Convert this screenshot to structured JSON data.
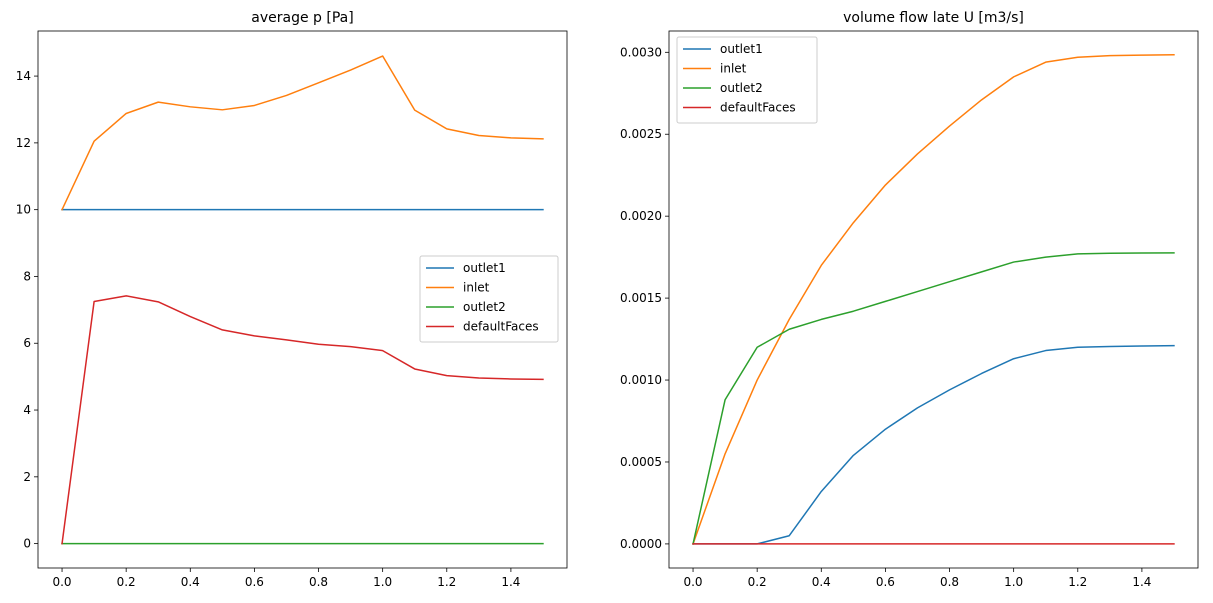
{
  "chart_data": [
    {
      "type": "line",
      "title": "average p [Pa]",
      "xlabel": "",
      "ylabel": "",
      "x": [
        0.0,
        0.1,
        0.2,
        0.3,
        0.4,
        0.5,
        0.6,
        0.7,
        0.8,
        0.9,
        1.0,
        1.1,
        1.2,
        1.3,
        1.4,
        1.5
      ],
      "xlim": [
        -0.075,
        1.575
      ],
      "ylim": [
        -0.73,
        15.35
      ],
      "xticks": [
        0.0,
        0.2,
        0.4,
        0.6,
        0.8,
        1.0,
        1.2,
        1.4
      ],
      "xtick_labels": [
        "0.0",
        "0.2",
        "0.4",
        "0.6",
        "0.8",
        "1.0",
        "1.2",
        "1.4"
      ],
      "yticks": [
        0,
        2,
        4,
        6,
        8,
        10,
        12,
        14
      ],
      "ytick_labels": [
        "0",
        "2",
        "4",
        "6",
        "8",
        "10",
        "12",
        "14"
      ],
      "legend_position": "center-right",
      "grid": false,
      "series": [
        {
          "name": "outlet1",
          "color": "#1f77b4",
          "values": [
            10,
            10,
            10,
            10,
            10,
            10,
            10,
            10,
            10,
            10,
            10,
            10,
            10,
            10,
            10,
            10
          ]
        },
        {
          "name": "inlet",
          "color": "#ff7f0e",
          "values": [
            10.0,
            12.05,
            12.88,
            13.22,
            13.08,
            12.99,
            13.12,
            13.42,
            13.8,
            14.18,
            14.6,
            12.98,
            12.42,
            12.22,
            12.15,
            12.12
          ]
        },
        {
          "name": "outlet2",
          "color": "#2ca02c",
          "values": [
            0,
            0,
            0,
            0,
            0,
            0,
            0,
            0,
            0,
            0,
            0,
            0,
            0,
            0,
            0,
            0
          ]
        },
        {
          "name": "defaultFaces",
          "color": "#d62728",
          "values": [
            0.0,
            7.25,
            7.42,
            7.24,
            6.8,
            6.4,
            6.22,
            6.1,
            5.97,
            5.9,
            5.78,
            5.23,
            5.03,
            4.96,
            4.93,
            4.92
          ]
        }
      ]
    },
    {
      "type": "line",
      "title": "volume flow late U [m3/s]",
      "xlabel": "",
      "ylabel": "",
      "x": [
        0.0,
        0.1,
        0.2,
        0.3,
        0.4,
        0.5,
        0.6,
        0.7,
        0.8,
        0.9,
        1.0,
        1.1,
        1.2,
        1.3,
        1.4,
        1.5
      ],
      "xlim": [
        -0.075,
        1.575
      ],
      "ylim": [
        -0.000147,
        0.00313
      ],
      "xticks": [
        0.0,
        0.2,
        0.4,
        0.6,
        0.8,
        1.0,
        1.2,
        1.4
      ],
      "xtick_labels": [
        "0.0",
        "0.2",
        "0.4",
        "0.6",
        "0.8",
        "1.0",
        "1.2",
        "1.4"
      ],
      "yticks": [
        0.0,
        0.0005,
        0.001,
        0.0015,
        0.002,
        0.0025,
        0.003
      ],
      "ytick_labels": [
        "0.0000",
        "0.0005",
        "0.0010",
        "0.0015",
        "0.0020",
        "0.0025",
        "0.0030"
      ],
      "legend_position": "top-left",
      "grid": false,
      "series": [
        {
          "name": "outlet1",
          "color": "#1f77b4",
          "values": [
            0.0,
            0.0,
            0.0,
            5e-05,
            0.00032,
            0.00054,
            0.0007,
            0.00083,
            0.00094,
            0.00104,
            0.00113,
            0.00118,
            0.0012,
            0.001205,
            0.001208,
            0.00121
          ]
        },
        {
          "name": "inlet",
          "color": "#ff7f0e",
          "values": [
            0.0,
            0.00055,
            0.001,
            0.00137,
            0.0017,
            0.00196,
            0.00219,
            0.00238,
            0.00255,
            0.00271,
            0.00285,
            0.00294,
            0.00297,
            0.00298,
            0.002983,
            0.002985
          ]
        },
        {
          "name": "outlet2",
          "color": "#2ca02c",
          "values": [
            0.0,
            0.00088,
            0.0012,
            0.00131,
            0.00137,
            0.00142,
            0.00148,
            0.00154,
            0.0016,
            0.00166,
            0.00172,
            0.00175,
            0.00177,
            0.001774,
            0.001775,
            0.001776
          ]
        },
        {
          "name": "defaultFaces",
          "color": "#d62728",
          "values": [
            0,
            0,
            0,
            0,
            0,
            0,
            0,
            0,
            0,
            0,
            0,
            0,
            0,
            0,
            0,
            0
          ]
        }
      ]
    }
  ]
}
